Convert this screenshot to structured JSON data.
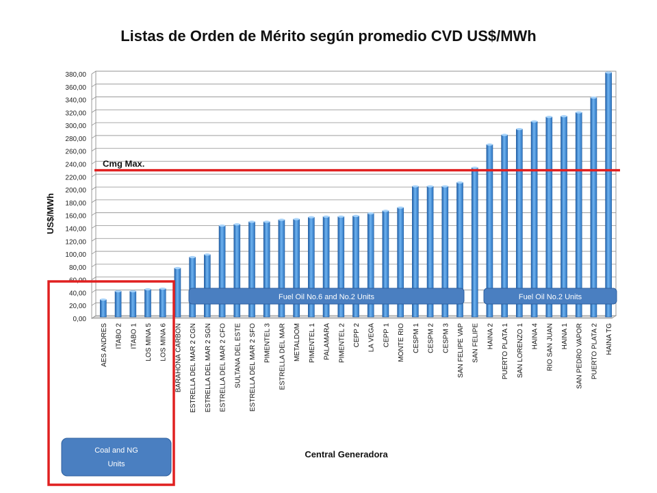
{
  "chart_data": {
    "type": "bar",
    "title": "Listas de Orden de Mérito según promedio CVD US$/MWh",
    "xlabel": "Central Generadora",
    "ylabel": "US$/MWh",
    "ylim": [
      0,
      380
    ],
    "ytick_step": 20,
    "ytick_labels": [
      "0,00",
      "20,00",
      "40,00",
      "60,00",
      "80,00",
      "100,00",
      "120,00",
      "140,00",
      "160,00",
      "180,00",
      "200,00",
      "220,00",
      "240,00",
      "260,00",
      "280,00",
      "300,00",
      "320,00",
      "340,00",
      "360,00",
      "380,00"
    ],
    "grid": true,
    "legend": "none",
    "bar_color": "#3d8fd8",
    "categories": [
      "AES ANDRES",
      "ITABO 2",
      "ITABO 1",
      "LOS MINA 5",
      "LOS MINA 6",
      "BARAHONA CARBON",
      "ESTRELLA DEL MAR 2 CGN",
      "ESTRELLA DEL MAR 2 SGN",
      "ESTRELLA DEL MAR 2 CFO",
      "SULTANA DEL ESTE",
      "ESTRELLA DEL MAR 2 SFO",
      "PIMENTEL 3",
      "ESTRELLA DEL MAR",
      "METALDOM",
      "PIMENTEL 1",
      "PALAMARA",
      "PIMENTEL 2",
      "CEPP 2",
      "LA VEGA",
      "CEPP 1",
      "MONTE RIO",
      "CESPM 1",
      "CESPM 2",
      "CESPM 3",
      "SAN FELIPE VAP",
      "SAN FELIPE",
      "HAINA 2",
      "PUERTO PLATA 1",
      "SAN LORENZO 1",
      "HAINA 4",
      "RIO SAN JUAN",
      "HAINA 1",
      "SAN PEDRO VAPOR",
      "PUERTO PLATA 2",
      "HAINA TG"
    ],
    "values": [
      25,
      38,
      38,
      41,
      42,
      74,
      91,
      95,
      140,
      142,
      146,
      146,
      149,
      150,
      153,
      154,
      154,
      155,
      159,
      163,
      168,
      201,
      201,
      201,
      207,
      230,
      266,
      281,
      290,
      302,
      309,
      310,
      316,
      339,
      378
    ],
    "reference_line": {
      "label": "Cmg Max.",
      "value": 226,
      "color": "#e02020"
    },
    "annotations": {
      "coal_ng": "Coal and NG Units",
      "fuel_oil_6_2": "Fuel Oil No.6 and No.2 Units",
      "fuel_oil_2": "Fuel Oil No.2 Units"
    },
    "annotation_color": "#4a7fc1",
    "highlight_color": "#e02020"
  }
}
